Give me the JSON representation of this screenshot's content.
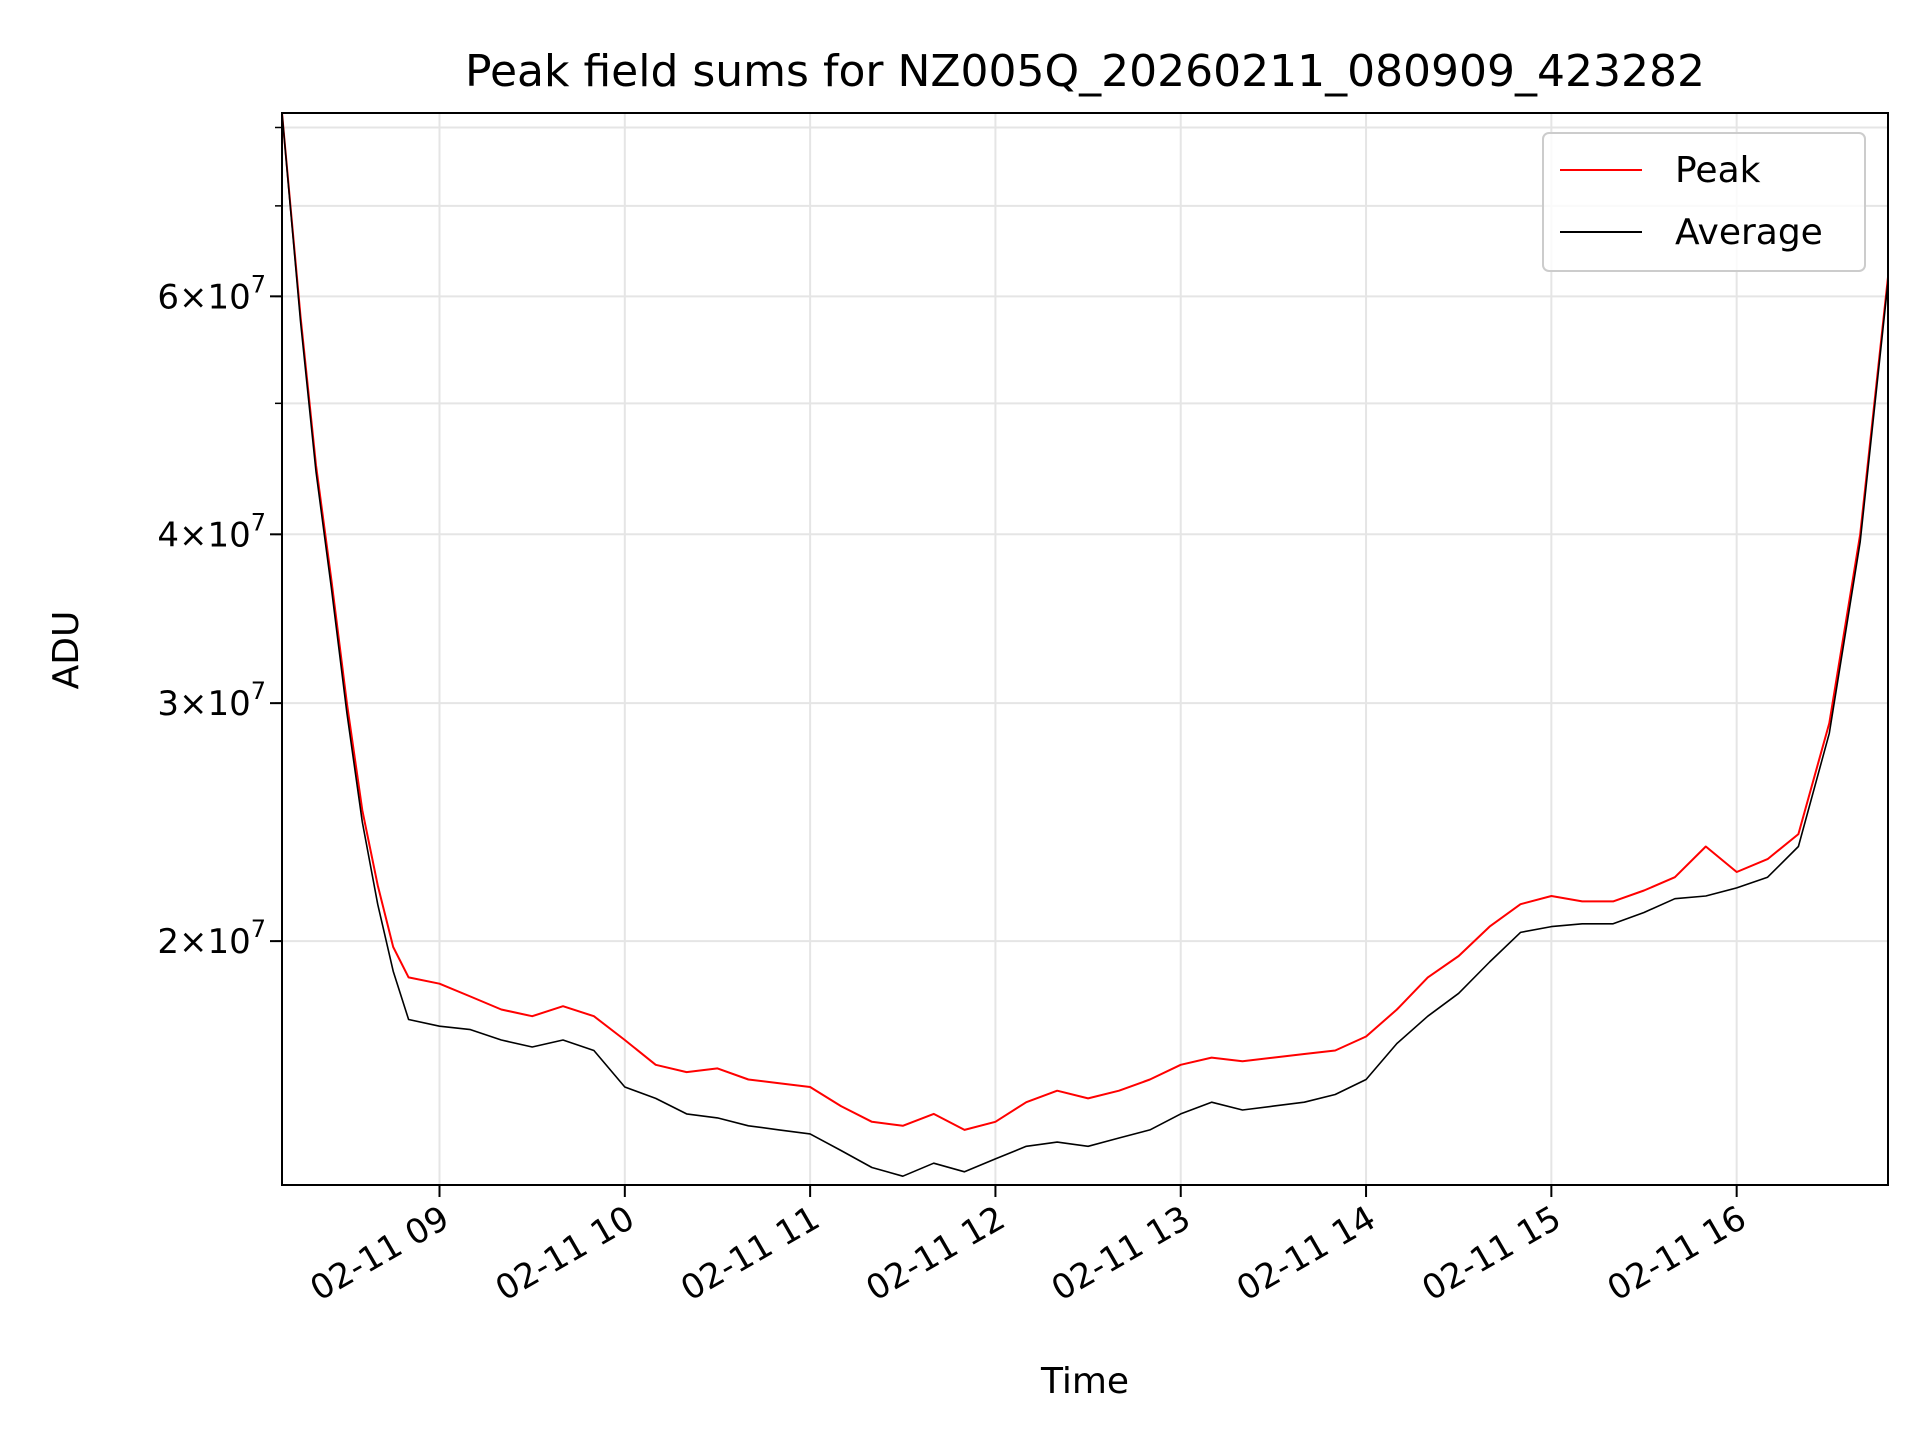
{
  "chart_data": {
    "type": "line",
    "title": "Peak field sums for NZ005Q_20260211_080909_423282",
    "xlabel": "Time",
    "ylabel": "ADU",
    "xscale": "time",
    "yscale": "log",
    "xlim": [
      "2026-02-11 08:09",
      "2026-02-11 16:49"
    ],
    "ylim": [
      13200000,
      82000000
    ],
    "grid": true,
    "legend_position": "top-right",
    "x_tick_labels": [
      "02-11 09",
      "02-11 10",
      "02-11 11",
      "02-11 12",
      "02-11 13",
      "02-11 14",
      "02-11 15",
      "02-11 16"
    ],
    "x_ticks": [
      "2026-02-11 09:00",
      "2026-02-11 10:00",
      "2026-02-11 11:00",
      "2026-02-11 12:00",
      "2026-02-11 13:00",
      "2026-02-11 14:00",
      "2026-02-11 15:00",
      "2026-02-11 16:00"
    ],
    "y_ticks": [
      {
        "value": 20000000,
        "mantissa": "2",
        "exp": "7"
      },
      {
        "value": 30000000,
        "mantissa": "3",
        "exp": "7"
      },
      {
        "value": 40000000,
        "mantissa": "4",
        "exp": "7"
      },
      {
        "value": 60000000,
        "mantissa": "6",
        "exp": "7"
      }
    ],
    "series": [
      {
        "name": "Peak",
        "color": "#ff0000",
        "x": [
          "2026-02-11 08:09",
          "2026-02-11 08:15",
          "2026-02-11 08:20",
          "2026-02-11 08:25",
          "2026-02-11 08:30",
          "2026-02-11 08:35",
          "2026-02-11 08:40",
          "2026-02-11 08:45",
          "2026-02-11 08:50",
          "2026-02-11 09:00",
          "2026-02-11 09:10",
          "2026-02-11 09:20",
          "2026-02-11 09:30",
          "2026-02-11 09:40",
          "2026-02-11 09:50",
          "2026-02-11 10:00",
          "2026-02-11 10:10",
          "2026-02-11 10:20",
          "2026-02-11 10:30",
          "2026-02-11 10:40",
          "2026-02-11 10:50",
          "2026-02-11 11:00",
          "2026-02-11 11:10",
          "2026-02-11 11:20",
          "2026-02-11 11:30",
          "2026-02-11 11:40",
          "2026-02-11 11:50",
          "2026-02-11 12:00",
          "2026-02-11 12:10",
          "2026-02-11 12:20",
          "2026-02-11 12:30",
          "2026-02-11 12:40",
          "2026-02-11 12:50",
          "2026-02-11 13:00",
          "2026-02-11 13:10",
          "2026-02-11 13:20",
          "2026-02-11 13:30",
          "2026-02-11 13:40",
          "2026-02-11 13:50",
          "2026-02-11 14:00",
          "2026-02-11 14:10",
          "2026-02-11 14:20",
          "2026-02-11 14:30",
          "2026-02-11 14:40",
          "2026-02-11 14:50",
          "2026-02-11 15:00",
          "2026-02-11 15:10",
          "2026-02-11 15:20",
          "2026-02-11 15:30",
          "2026-02-11 15:40",
          "2026-02-11 15:50",
          "2026-02-11 16:00",
          "2026-02-11 16:10",
          "2026-02-11 16:20",
          "2026-02-11 16:30",
          "2026-02-11 16:40",
          "2026-02-11 16:49"
        ],
        "y": [
          82000000,
          58000000,
          45000000,
          37000000,
          30000000,
          25000000,
          22000000,
          19800000,
          18800000,
          18600000,
          18200000,
          17800000,
          17600000,
          17900000,
          17600000,
          16900000,
          16200000,
          16000000,
          16100000,
          15800000,
          15700000,
          15600000,
          15100000,
          14700000,
          14600000,
          14900000,
          14500000,
          14700000,
          15200000,
          15500000,
          15300000,
          15500000,
          15800000,
          16200000,
          16400000,
          16300000,
          16400000,
          16500000,
          16600000,
          17000000,
          17800000,
          18800000,
          19500000,
          20500000,
          21300000,
          21600000,
          21400000,
          21400000,
          21800000,
          22300000,
          23500000,
          22500000,
          23000000,
          24000000,
          29000000,
          40000000,
          62000000
        ]
      },
      {
        "name": "Average",
        "color": "#000000",
        "x": [
          "2026-02-11 08:09",
          "2026-02-11 08:15",
          "2026-02-11 08:20",
          "2026-02-11 08:25",
          "2026-02-11 08:30",
          "2026-02-11 08:35",
          "2026-02-11 08:40",
          "2026-02-11 08:45",
          "2026-02-11 08:50",
          "2026-02-11 09:00",
          "2026-02-11 09:10",
          "2026-02-11 09:20",
          "2026-02-11 09:30",
          "2026-02-11 09:40",
          "2026-02-11 09:50",
          "2026-02-11 10:00",
          "2026-02-11 10:10",
          "2026-02-11 10:20",
          "2026-02-11 10:30",
          "2026-02-11 10:40",
          "2026-02-11 10:50",
          "2026-02-11 11:00",
          "2026-02-11 11:10",
          "2026-02-11 11:20",
          "2026-02-11 11:30",
          "2026-02-11 11:40",
          "2026-02-11 11:50",
          "2026-02-11 12:00",
          "2026-02-11 12:10",
          "2026-02-11 12:20",
          "2026-02-11 12:30",
          "2026-02-11 12:40",
          "2026-02-11 12:50",
          "2026-02-11 13:00",
          "2026-02-11 13:10",
          "2026-02-11 13:20",
          "2026-02-11 13:30",
          "2026-02-11 13:40",
          "2026-02-11 13:50",
          "2026-02-11 14:00",
          "2026-02-11 14:10",
          "2026-02-11 14:20",
          "2026-02-11 14:30",
          "2026-02-11 14:40",
          "2026-02-11 14:50",
          "2026-02-11 15:00",
          "2026-02-11 15:10",
          "2026-02-11 15:20",
          "2026-02-11 15:30",
          "2026-02-11 15:40",
          "2026-02-11 15:50",
          "2026-02-11 16:00",
          "2026-02-11 16:10",
          "2026-02-11 16:20",
          "2026-02-11 16:30",
          "2026-02-11 16:40",
          "2026-02-11 16:49"
        ],
        "y": [
          82000000,
          57500000,
          44500000,
          36500000,
          29500000,
          24500000,
          21300000,
          19000000,
          17500000,
          17300000,
          17200000,
          16900000,
          16700000,
          16900000,
          16600000,
          15600000,
          15300000,
          14900000,
          14800000,
          14600000,
          14500000,
          14400000,
          14000000,
          13600000,
          13400000,
          13700000,
          13500000,
          13800000,
          14100000,
          14200000,
          14100000,
          14300000,
          14500000,
          14900000,
          15200000,
          15000000,
          15100000,
          15200000,
          15400000,
          15800000,
          16800000,
          17600000,
          18300000,
          19300000,
          20300000,
          20500000,
          20600000,
          20600000,
          21000000,
          21500000,
          21600000,
          21900000,
          22300000,
          23500000,
          28500000,
          39500000,
          61500000
        ]
      }
    ]
  }
}
